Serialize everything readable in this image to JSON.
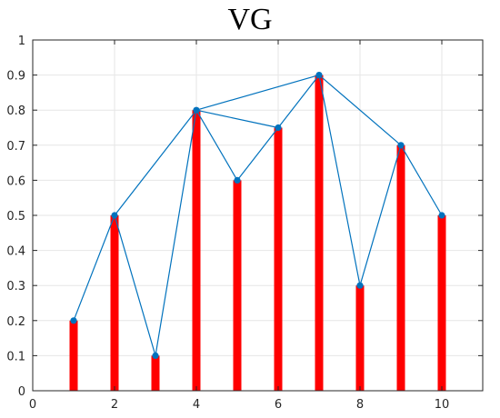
{
  "chart_data": {
    "type": "bar",
    "title": "VG",
    "xlabel": "",
    "ylabel": "",
    "x": [
      1,
      2,
      3,
      4,
      5,
      6,
      7,
      8,
      9,
      10
    ],
    "values": [
      0.2,
      0.5,
      0.1,
      0.8,
      0.6,
      0.75,
      0.9,
      0.3,
      0.7,
      0.5
    ],
    "xlim": [
      0,
      11
    ],
    "ylim": [
      0,
      1
    ],
    "xticks": [
      0,
      2,
      4,
      6,
      8,
      10
    ],
    "yticks": [
      0,
      0.1,
      0.2,
      0.3,
      0.4,
      0.5,
      0.6,
      0.7,
      0.8,
      0.9,
      1
    ],
    "grid": true,
    "edges": [
      [
        1,
        2
      ],
      [
        2,
        3
      ],
      [
        2,
        4
      ],
      [
        3,
        4
      ],
      [
        4,
        5
      ],
      [
        4,
        6
      ],
      [
        4,
        7
      ],
      [
        5,
        6
      ],
      [
        6,
        7
      ],
      [
        7,
        8
      ],
      [
        7,
        9
      ],
      [
        8,
        9
      ],
      [
        9,
        10
      ]
    ],
    "bar_color": "#ff0000",
    "line_color": "#0072bd",
    "marker_color": "#0072bd"
  }
}
